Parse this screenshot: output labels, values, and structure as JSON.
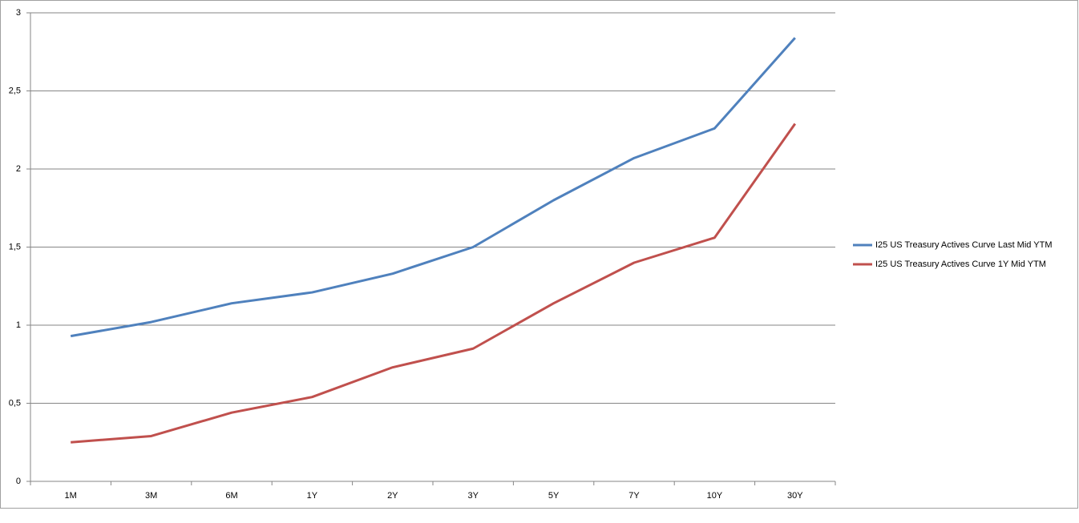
{
  "chart_data": {
    "type": "line",
    "categories": [
      "1M",
      "3M",
      "6M",
      "1Y",
      "2Y",
      "3Y",
      "5Y",
      "7Y",
      "10Y",
      "30Y"
    ],
    "series": [
      {
        "name": "I25 US Treasury Actives Curve Last Mid YTM",
        "color": "#4f81bd",
        "values": [
          0.93,
          1.02,
          1.14,
          1.21,
          1.33,
          1.5,
          1.8,
          2.07,
          2.26,
          2.84
        ]
      },
      {
        "name": "I25 US Treasury Actives Curve 1Y Mid YTM",
        "color": "#c0504d",
        "values": [
          0.25,
          0.29,
          0.44,
          0.54,
          0.73,
          0.85,
          1.14,
          1.4,
          1.56,
          2.29
        ]
      }
    ],
    "ylim": [
      0,
      3
    ],
    "yticks": [
      0,
      {
        "value": 0.5,
        "label": "0,5"
      },
      1,
      {
        "value": 1.5,
        "label": "1,5"
      },
      2,
      {
        "value": 2.5,
        "label": "2,5"
      },
      3
    ],
    "grid": true,
    "legend": "right"
  }
}
